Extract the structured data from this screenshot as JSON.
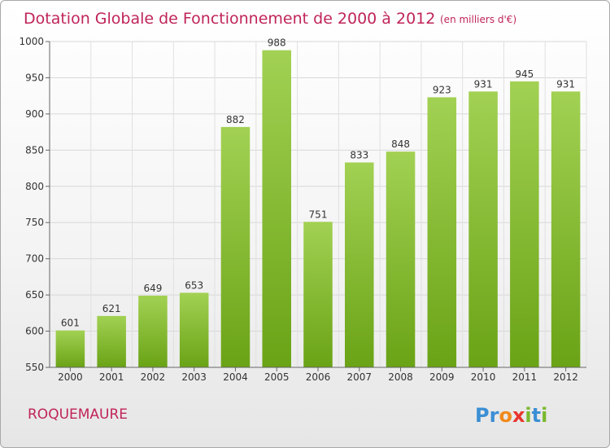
{
  "chart_data": {
    "type": "bar",
    "title": "Dotation Globale de Fonctionnement de 2000 à 2012",
    "subtitle": "(en milliers d'€)",
    "categories": [
      "2000",
      "2001",
      "2002",
      "2003",
      "2004",
      "2005",
      "2006",
      "2007",
      "2008",
      "2009",
      "2010",
      "2011",
      "2012"
    ],
    "values": [
      601,
      621,
      649,
      653,
      882,
      988,
      751,
      833,
      848,
      923,
      931,
      945,
      931
    ],
    "ylim": [
      550,
      1000
    ],
    "yticks": [
      550,
      600,
      650,
      700,
      750,
      800,
      850,
      900,
      950,
      1000
    ],
    "grid": true,
    "bar_color_top": "#a2d153",
    "bar_color_bottom": "#6aa316"
  },
  "commune": "ROQUEMAURE",
  "logo": {
    "letters": [
      "P",
      "r",
      "o",
      "x",
      "i",
      "t",
      "i"
    ],
    "colors": [
      "#3b8fd4",
      "#3b8fd4",
      "#f08a1c",
      "#e8352e",
      "#7ab82d",
      "#3b8fd4",
      "#7ab82d"
    ]
  }
}
